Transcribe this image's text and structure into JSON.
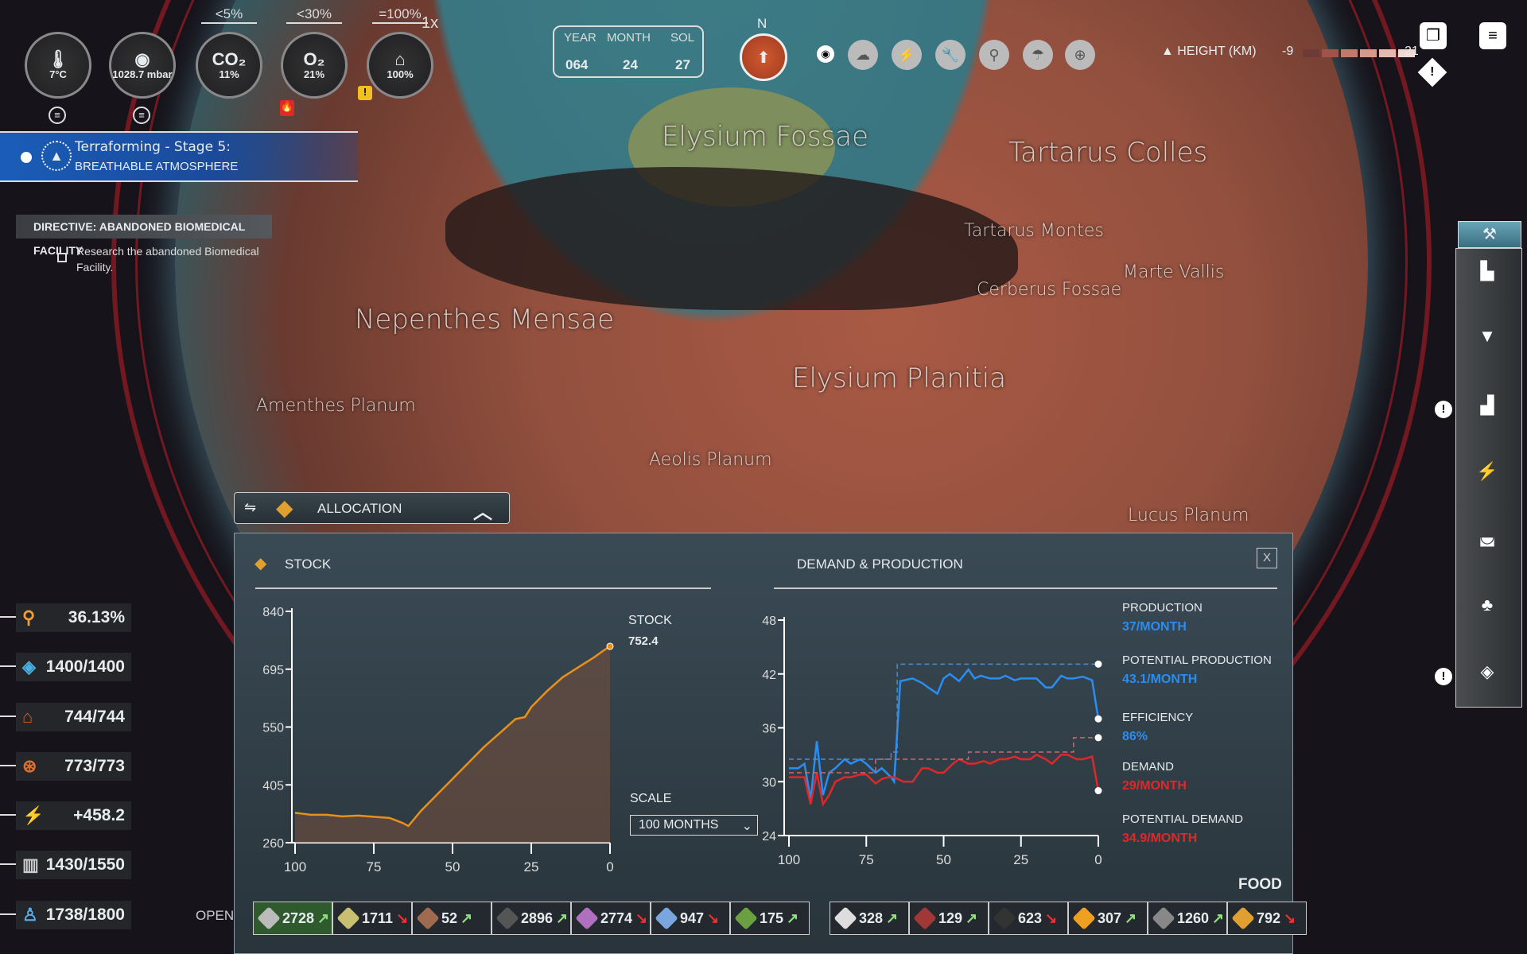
{
  "gauges": [
    {
      "name": "temperature",
      "icon": "thermometer-icon",
      "glyph": "🌡",
      "value": "7°C"
    },
    {
      "name": "pressure",
      "icon": "pressure-icon",
      "glyph": "◉",
      "value": "1028.7 mbar"
    },
    {
      "name": "co2",
      "label": "CO₂",
      "value": "11%",
      "threshold": "<5%"
    },
    {
      "name": "o2",
      "label": "O₂",
      "value": "21%",
      "threshold": "<30%"
    },
    {
      "name": "water",
      "icon": "water-icon",
      "glyph": "⌂",
      "value": "100%",
      "threshold": "=100%"
    }
  ],
  "speed": "1x",
  "date": {
    "year_label": "YEAR",
    "month_label": "MONTH",
    "sol_label": "SOL",
    "year": "064",
    "month": "24",
    "sol": "27"
  },
  "compass": {
    "north": "N"
  },
  "terraforming": {
    "title": "Terraforming - Stage 5:",
    "subtitle": "BREATHABLE ATMOSPHERE"
  },
  "directive": {
    "title": "DIRECTIVE: ABANDONED BIOMEDICAL FACILITY",
    "text": "Research the abandoned Biomedical Facility."
  },
  "height_legend": {
    "label": "HEIGHT (KM)",
    "min": "-9",
    "max": "21",
    "colors": [
      "#6e3a36",
      "#a0534a",
      "#c07a6c",
      "#d49a8e",
      "#e3b9b0",
      "#f0d8d2"
    ]
  },
  "map_labels": [
    "Elysium Fossae",
    "Tartarus Colles",
    "Tartarus Montes",
    "Marte Vallis",
    "Nepenthes Mensae",
    "Elysium Planitia",
    "Aeolis Planum",
    "Lucus Planum",
    "Amenthes Planum",
    "Cerberus Fossae"
  ],
  "left_stats": [
    {
      "icon": "water-drop-icon",
      "glyph": "⚲",
      "value": "36.13%",
      "color": "#f0a030"
    },
    {
      "icon": "oxygen-crystal-icon",
      "glyph": "◈",
      "value": "1400/1400",
      "color": "#4ab0e0"
    },
    {
      "icon": "housing-icon",
      "glyph": "⌂",
      "value": "744/744",
      "color": "#d06030"
    },
    {
      "icon": "drone-icon",
      "glyph": "⊛",
      "value": "773/773",
      "color": "#e07030"
    },
    {
      "icon": "power-icon",
      "glyph": "⚡",
      "value": "+458.2",
      "color": "#f0b020"
    },
    {
      "icon": "buildings-icon",
      "glyph": "▥",
      "value": "1430/1550",
      "color": "#ccc"
    },
    {
      "icon": "population-icon",
      "glyph": "♙",
      "value": "1738/1800",
      "color": "#5ab0e8"
    }
  ],
  "open_label": "OPEN",
  "allocation": {
    "label": "ALLOCATION"
  },
  "stock_panel": {
    "title": "STOCK",
    "stock_label": "STOCK",
    "stock_value": "752.4",
    "scale_label": "SCALE",
    "scale_value": "100 MONTHS"
  },
  "dp_panel": {
    "title": "DEMAND & PRODUCTION",
    "close": "X",
    "legend": [
      {
        "label": "PRODUCTION",
        "value": "37/MONTH",
        "color": "#2a8ef0"
      },
      {
        "label": "POTENTIAL PRODUCTION",
        "value": "43.1/MONTH",
        "color": "#2a8ef0"
      },
      {
        "label": "EFFICIENCY",
        "value": "86%",
        "color": "#2a8ef0"
      },
      {
        "label": "DEMAND",
        "value": "29/MONTH",
        "color": "#e02828"
      },
      {
        "label": "POTENTIAL DEMAND",
        "value": "34.9/MONTH",
        "color": "#e02828"
      }
    ]
  },
  "resource_category": "FOOD",
  "resources": [
    {
      "value": "2728",
      "trend": "up",
      "color": "#bbb"
    },
    {
      "value": "1711",
      "trend": "down",
      "color": "#c8c070"
    },
    {
      "value": "52",
      "trend": "up",
      "color": "#a06a50"
    },
    {
      "value": "2896",
      "trend": "up",
      "color": "#555"
    },
    {
      "value": "2774",
      "trend": "down",
      "color": "#b070c0"
    },
    {
      "value": "947",
      "trend": "down",
      "color": "#7aa6e0"
    },
    {
      "value": "175",
      "trend": "up",
      "color": "#6aa040"
    },
    {
      "value": "328",
      "trend": "up",
      "color": "#ddd"
    },
    {
      "value": "129",
      "trend": "up",
      "color": "#a03838"
    },
    {
      "value": "623",
      "trend": "down",
      "color": "#333"
    },
    {
      "value": "307",
      "trend": "up",
      "color": "#f0a020"
    },
    {
      "value": "1260",
      "trend": "up",
      "color": "#888"
    },
    {
      "value": "792",
      "trend": "down",
      "color": "#e0a030"
    }
  ],
  "trend_glyphs": {
    "up": "↗",
    "down": "↘"
  },
  "chart_data": [
    {
      "type": "area",
      "title": "STOCK",
      "xlabel": "",
      "ylabel": "",
      "xlim": [
        100,
        0
      ],
      "ylim": [
        260,
        840
      ],
      "xticks": [
        100,
        75,
        50,
        25,
        0
      ],
      "yticks": [
        840,
        695,
        550,
        405,
        260
      ],
      "series": [
        {
          "name": "Stock",
          "color": "#e8901c",
          "x": [
            100,
            95,
            90,
            85,
            80,
            75,
            70,
            66,
            64,
            60,
            55,
            50,
            45,
            40,
            35,
            30,
            27,
            25,
            20,
            15,
            10,
            5,
            2,
            0
          ],
          "y": [
            335,
            330,
            330,
            326,
            328,
            325,
            322,
            310,
            302,
            340,
            380,
            420,
            460,
            500,
            535,
            570,
            575,
            600,
            640,
            675,
            700,
            725,
            742,
            752.4
          ]
        }
      ]
    },
    {
      "type": "line",
      "title": "DEMAND & PRODUCTION",
      "xlabel": "",
      "ylabel": "",
      "xlim": [
        100,
        0
      ],
      "ylim": [
        24,
        48
      ],
      "xticks": [
        100,
        75,
        50,
        25,
        0
      ],
      "yticks": [
        48,
        42,
        36,
        30,
        24
      ],
      "series": [
        {
          "name": "Production",
          "color": "#2a8ef0",
          "dashed": false,
          "x": [
            100,
            97,
            95,
            93,
            91,
            89,
            87,
            85,
            82,
            80,
            77,
            75,
            72,
            70,
            67,
            66,
            64,
            60,
            57,
            55,
            52,
            50,
            48,
            45,
            42,
            40,
            38,
            35,
            32,
            30,
            27,
            25,
            20,
            17,
            15,
            12,
            10,
            8,
            5,
            2,
            0
          ],
          "y": [
            31.5,
            31.5,
            32,
            28,
            34.5,
            28.5,
            31,
            31.5,
            32.5,
            32,
            32.5,
            32,
            31,
            31.5,
            30.5,
            30,
            41.2,
            41.5,
            41,
            40.5,
            39.8,
            41.5,
            42,
            41.2,
            42.5,
            41.5,
            41.8,
            41.5,
            41.5,
            41.8,
            41.3,
            41.5,
            41.5,
            40.5,
            40.5,
            41.8,
            41.5,
            41.5,
            41.7,
            41.3,
            37
          ]
        },
        {
          "name": "Demand",
          "color": "#e02828",
          "dashed": false,
          "x": [
            100,
            97,
            95,
            93,
            91,
            89,
            87,
            85,
            82,
            80,
            77,
            75,
            72,
            70,
            68,
            66,
            63,
            60,
            57,
            55,
            52,
            50,
            47,
            45,
            42,
            40,
            37,
            35,
            32,
            30,
            27,
            25,
            22,
            20,
            17,
            15,
            12,
            10,
            7,
            5,
            2,
            0
          ],
          "y": [
            30.5,
            30.5,
            30.5,
            27.5,
            31,
            27.5,
            28.5,
            30,
            30.5,
            30.5,
            30.8,
            30.8,
            29.8,
            30.3,
            30.5,
            30.5,
            30,
            30,
            31.5,
            31.5,
            31,
            31,
            32,
            32.5,
            32,
            32,
            32.3,
            32,
            32.5,
            32.5,
            32.8,
            32.5,
            32.5,
            33,
            32.5,
            32,
            33,
            33,
            32.5,
            32.5,
            32.8,
            29
          ]
        },
        {
          "name": "Potential production",
          "color": "#4a8ed0",
          "dashed": true,
          "x": [
            100,
            67,
            67,
            65,
            65,
            0
          ],
          "y": [
            32.5,
            32.5,
            33.3,
            33.3,
            43.1,
            43.1
          ]
        },
        {
          "name": "Potential demand",
          "color": "#c86a70",
          "dashed": true,
          "x": [
            100,
            72,
            72,
            42,
            42,
            8,
            8,
            0
          ],
          "y": [
            31,
            31,
            32.5,
            32.5,
            33.3,
            33.3,
            34.9,
            34.9
          ]
        }
      ]
    }
  ]
}
